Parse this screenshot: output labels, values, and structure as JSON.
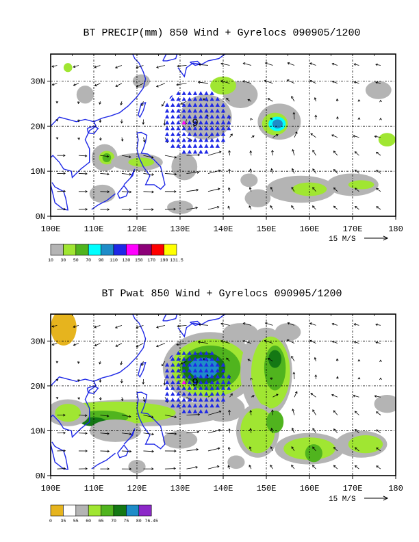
{
  "panels": [
    {
      "title": "BT PRECIP(mm) 850 Wind + Gyrelocs 090905/1200",
      "map": {
        "lon_min": 100,
        "lon_max": 180,
        "lat_min": 0,
        "lat_max": 36
      },
      "x_ticks": [
        "100E",
        "110E",
        "120E",
        "130E",
        "140E",
        "150E",
        "160E",
        "170E",
        "180"
      ],
      "y_ticks": [
        "0N",
        "10N",
        "20N",
        "30N"
      ],
      "y_tick_values": [
        0,
        10,
        20,
        30
      ],
      "x_tick_values": [
        100,
        110,
        120,
        130,
        140,
        150,
        160,
        170,
        180
      ],
      "vector_key": "15 M/S",
      "colorbar_labels": [
        "10",
        "30",
        "50",
        "70",
        "90",
        "110",
        "130",
        "150",
        "170",
        "190",
        "131.5"
      ],
      "colorbar_colors": [
        "#b4b4b4",
        "#a0e632",
        "#50b41e",
        "#00ffff",
        "#1e8cc8",
        "#1e28e6",
        "#ff00ff",
        "#8c0078",
        "#ff0000",
        "#ffff00"
      ],
      "gyre_label": "9",
      "gyre_center": {
        "lon": 133.5,
        "lat": 21
      },
      "gyre_marker_color": "#1e28e6",
      "gyre_center_marker_color": "#ff00ff"
    },
    {
      "title": "BT Pwat 850 Wind + Gyrelocs 090905/1200",
      "map": {
        "lon_min": 100,
        "lon_max": 180,
        "lat_min": 0,
        "lat_max": 36
      },
      "x_ticks": [
        "100E",
        "110E",
        "120E",
        "130E",
        "140E",
        "150E",
        "160E",
        "170E",
        "180"
      ],
      "y_ticks": [
        "0N",
        "10N",
        "20N",
        "30N"
      ],
      "y_tick_values": [
        0,
        10,
        20,
        30
      ],
      "x_tick_values": [
        100,
        110,
        120,
        130,
        140,
        150,
        160,
        170,
        180
      ],
      "vector_key": "15 M/S",
      "colorbar_labels": [
        "0",
        "35",
        "55",
        "60",
        "65",
        "70",
        "75",
        "80",
        "76.45"
      ],
      "colorbar_colors": [
        "#e6b41e",
        "#ffffff",
        "#b4b4b4",
        "#a0e632",
        "#50b41e",
        "#147814",
        "#1e8cc8",
        "#8c28c8"
      ],
      "gyre_label": "9",
      "gyre_center": {
        "lon": 133.5,
        "lat": 21
      },
      "gyre_marker_color": "#1e28e6",
      "gyre_center_marker_color": "#ff00ff"
    }
  ]
}
